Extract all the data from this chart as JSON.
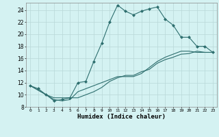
{
  "xlabel": "Humidex (Indice chaleur)",
  "bg_color": "#d4f2f2",
  "line_color": "#2d6e6e",
  "grid_color": "#b8d8d8",
  "xlim": [
    -0.5,
    23.5
  ],
  "ylim": [
    8,
    25.2
  ],
  "xticks": [
    0,
    1,
    2,
    3,
    4,
    5,
    6,
    7,
    8,
    9,
    10,
    11,
    12,
    13,
    14,
    15,
    16,
    17,
    18,
    19,
    20,
    21,
    22,
    23
  ],
  "yticks": [
    8,
    10,
    12,
    14,
    16,
    18,
    20,
    22,
    24
  ],
  "line1_x": [
    0,
    1,
    2,
    3,
    4,
    5,
    6,
    7,
    8,
    9,
    10,
    11,
    12,
    13,
    14,
    15,
    16,
    17,
    18,
    19,
    20,
    21,
    22,
    23
  ],
  "line1_y": [
    11.5,
    11.0,
    10.0,
    9.0,
    9.2,
    9.5,
    12.0,
    12.2,
    15.5,
    18.5,
    22.0,
    24.8,
    23.8,
    23.2,
    23.8,
    24.2,
    24.5,
    22.5,
    21.5,
    19.5,
    19.5,
    18.0,
    18.0,
    17.0
  ],
  "line2_x": [
    0,
    2,
    3,
    4,
    5,
    6,
    7,
    8,
    9,
    10,
    11,
    12,
    13,
    14,
    15,
    16,
    17,
    18,
    19,
    20,
    21,
    22,
    23
  ],
  "line2_y": [
    11.5,
    10.0,
    9.5,
    9.5,
    9.5,
    9.5,
    10.0,
    10.5,
    11.2,
    12.2,
    12.8,
    13.2,
    13.2,
    13.8,
    14.2,
    15.2,
    15.8,
    16.2,
    16.7,
    16.8,
    17.2,
    17.0,
    17.0
  ],
  "line3_x": [
    0,
    2,
    3,
    4,
    5,
    6,
    7,
    8,
    9,
    10,
    11,
    12,
    13,
    14,
    15,
    16,
    17,
    18,
    19,
    20,
    21,
    22,
    23
  ],
  "line3_y": [
    11.5,
    10.0,
    9.2,
    9.0,
    9.2,
    10.5,
    11.0,
    11.5,
    12.0,
    12.5,
    13.0,
    13.0,
    13.0,
    13.5,
    14.5,
    15.5,
    16.2,
    16.7,
    17.2,
    17.2,
    17.0,
    17.0,
    17.0
  ]
}
